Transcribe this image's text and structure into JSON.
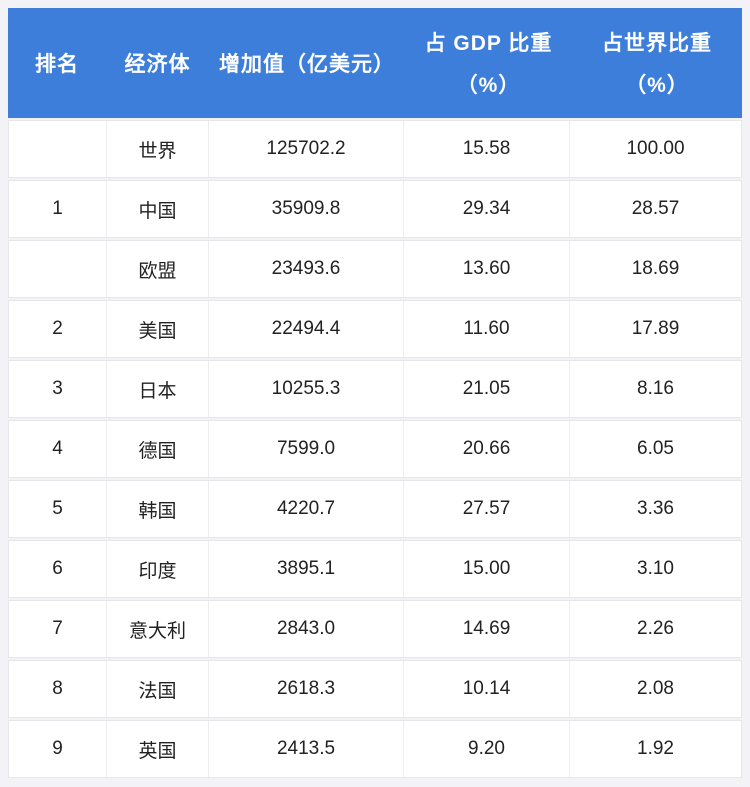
{
  "table": {
    "header": {
      "rank": "排名",
      "economy": "经济体",
      "value_added": "增加值（亿美元）",
      "gdp_share_line1": "占 GDP 比重",
      "gdp_share_line2": "（%）",
      "world_share_line1": "占世界比重",
      "world_share_line2": "（%）"
    },
    "rows": [
      {
        "rank": "",
        "economy": "世界",
        "value": "125702.2",
        "gdp_share": "15.58",
        "world_share": "100.00"
      },
      {
        "rank": "1",
        "economy": "中国",
        "value": "35909.8",
        "gdp_share": "29.34",
        "world_share": "28.57"
      },
      {
        "rank": "",
        "economy": "欧盟",
        "value": "23493.6",
        "gdp_share": "13.60",
        "world_share": "18.69"
      },
      {
        "rank": "2",
        "economy": "美国",
        "value": "22494.4",
        "gdp_share": "11.60",
        "world_share": "17.89"
      },
      {
        "rank": "3",
        "economy": "日本",
        "value": "10255.3",
        "gdp_share": "21.05",
        "world_share": "8.16"
      },
      {
        "rank": "4",
        "economy": "德国",
        "value": "7599.0",
        "gdp_share": "20.66",
        "world_share": "6.05"
      },
      {
        "rank": "5",
        "economy": "韩国",
        "value": "4220.7",
        "gdp_share": "27.57",
        "world_share": "3.36"
      },
      {
        "rank": "6",
        "economy": "印度",
        "value": "3895.1",
        "gdp_share": "15.00",
        "world_share": "3.10"
      },
      {
        "rank": "7",
        "economy": "意大利",
        "value": "2843.0",
        "gdp_share": "14.69",
        "world_share": "2.26"
      },
      {
        "rank": "8",
        "economy": "法国",
        "value": "2618.3",
        "gdp_share": "10.14",
        "world_share": "2.08"
      },
      {
        "rank": "9",
        "economy": "英国",
        "value": "2413.5",
        "gdp_share": "9.20",
        "world_share": "1.92"
      }
    ]
  },
  "colors": {
    "header_bg": "#3e7edb",
    "header_text": "#ffffff",
    "page_bg": "#f3f2f6",
    "row_bg": "#ffffff",
    "border": "#e7e6ec",
    "body_text": "#222222"
  },
  "chart_data": {
    "type": "table",
    "title": "",
    "columns": [
      "排名",
      "经济体",
      "增加值（亿美元）",
      "占GDP比重（%）",
      "占世界比重（%）"
    ],
    "rows": [
      [
        "",
        "世界",
        125702.2,
        15.58,
        100.0
      ],
      [
        "1",
        "中国",
        35909.8,
        29.34,
        28.57
      ],
      [
        "",
        "欧盟",
        23493.6,
        13.6,
        18.69
      ],
      [
        "2",
        "美国",
        22494.4,
        11.6,
        17.89
      ],
      [
        "3",
        "日本",
        10255.3,
        21.05,
        8.16
      ],
      [
        "4",
        "德国",
        7599.0,
        20.66,
        6.05
      ],
      [
        "5",
        "韩国",
        4220.7,
        27.57,
        3.36
      ],
      [
        "6",
        "印度",
        3895.1,
        15.0,
        3.1
      ],
      [
        "7",
        "意大利",
        2843.0,
        14.69,
        2.26
      ],
      [
        "8",
        "法国",
        2618.3,
        10.14,
        2.08
      ],
      [
        "9",
        "英国",
        2413.5,
        9.2,
        1.92
      ]
    ]
  }
}
